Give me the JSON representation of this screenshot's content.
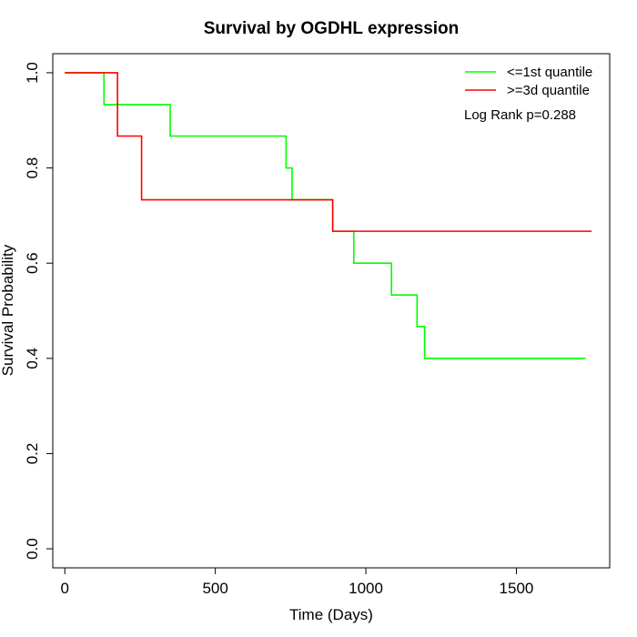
{
  "chart_data": {
    "type": "line",
    "title": "Survival by OGDHL expression",
    "xlabel": "Time (Days)",
    "ylabel": "Survival Probability",
    "xlim": [
      -40,
      1810
    ],
    "ylim": [
      -0.04,
      1.04
    ],
    "x_ticks": [
      0,
      500,
      1000,
      1500
    ],
    "x_tick_labels": [
      "0",
      "500",
      "1000",
      "1500"
    ],
    "y_ticks": [
      0.0,
      0.2,
      0.4,
      0.6,
      0.8,
      1.0
    ],
    "y_tick_labels": [
      "0.0",
      "0.2",
      "0.4",
      "0.6",
      "0.8",
      "1.0"
    ],
    "grid": false,
    "legend_position": "top-right",
    "annotation": "Log Rank p=0.288",
    "series": [
      {
        "name": "<=1st quantile",
        "color": "#00ff00",
        "step": true,
        "x": [
          0,
          130,
          350,
          735,
          755,
          890,
          960,
          1085,
          1170,
          1195,
          1730
        ],
        "y": [
          1.0,
          0.933,
          0.867,
          0.8,
          0.733,
          0.667,
          0.6,
          0.533,
          0.467,
          0.4,
          0.4
        ]
      },
      {
        "name": ">=3d quantile",
        "color": "#ff0000",
        "step": true,
        "x": [
          0,
          175,
          255,
          890,
          1750
        ],
        "y": [
          1.0,
          0.867,
          0.733,
          0.667,
          0.667
        ]
      }
    ]
  }
}
